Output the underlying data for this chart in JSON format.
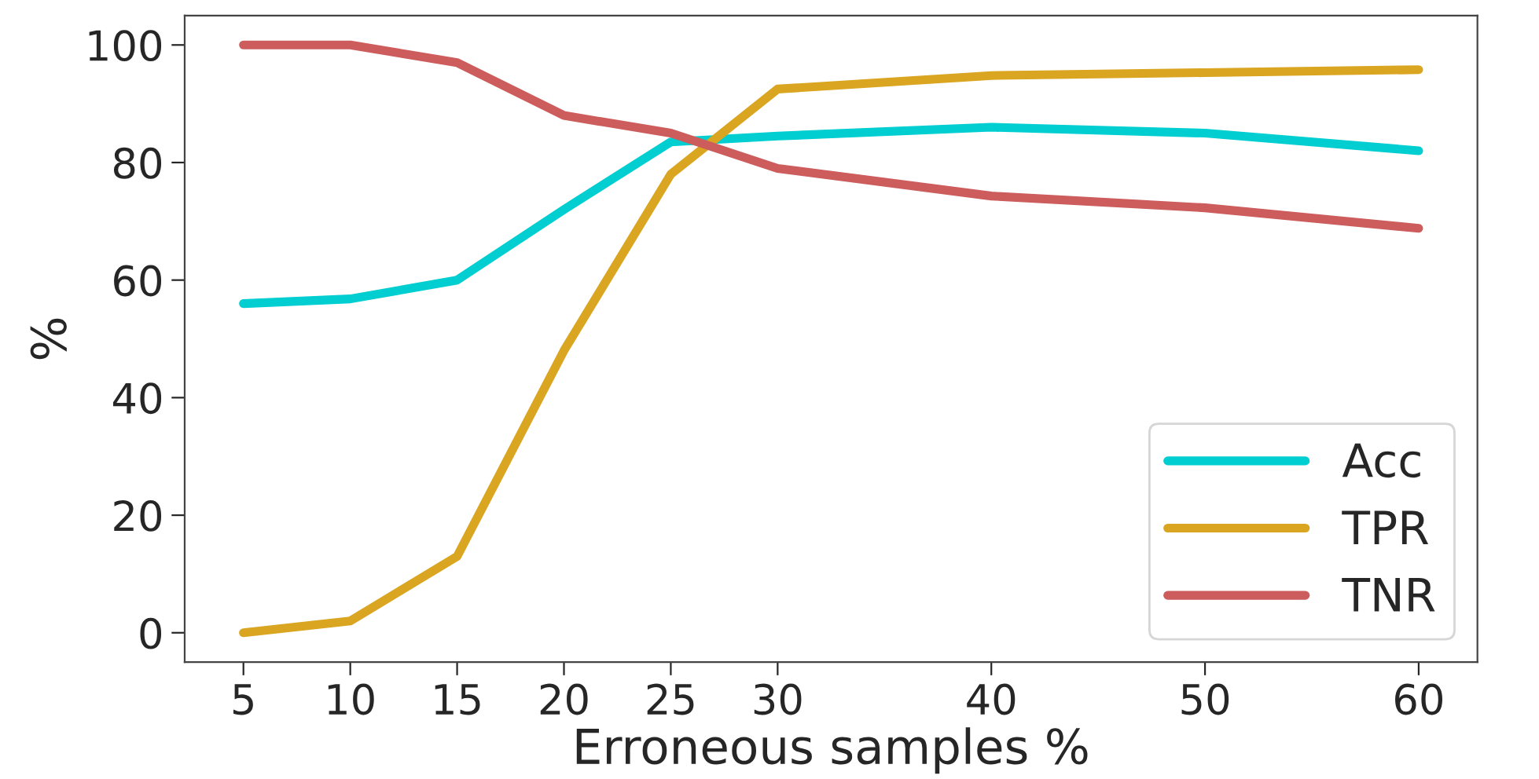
{
  "chart_data": {
    "type": "line",
    "xlabel": "Erroneous samples %",
    "ylabel": "%",
    "x": [
      5,
      10,
      15,
      20,
      25,
      30,
      40,
      50,
      60
    ],
    "series": [
      {
        "name": "Acc",
        "color": "#00ced1",
        "values": [
          56,
          56.8,
          60,
          72,
          83.5,
          84.5,
          86,
          85,
          82
        ]
      },
      {
        "name": "TPR",
        "color": "#daa520",
        "values": [
          0,
          2,
          13,
          48,
          78,
          92.5,
          94.8,
          95.3,
          95.8
        ]
      },
      {
        "name": "TNR",
        "color": "#cd5c5c",
        "values": [
          100,
          100,
          97,
          88,
          85,
          79,
          74.3,
          72.3,
          68.8
        ]
      }
    ],
    "xlim": [
      2.25,
      62.75
    ],
    "xticks": [
      5,
      10,
      15,
      20,
      25,
      30,
      40,
      50,
      60
    ],
    "ylim": [
      -5,
      105
    ],
    "yticks": [
      0,
      20,
      40,
      60,
      80,
      100
    ],
    "grid": false,
    "legend": "bottom right",
    "marker": "none",
    "line_style": "solid"
  }
}
